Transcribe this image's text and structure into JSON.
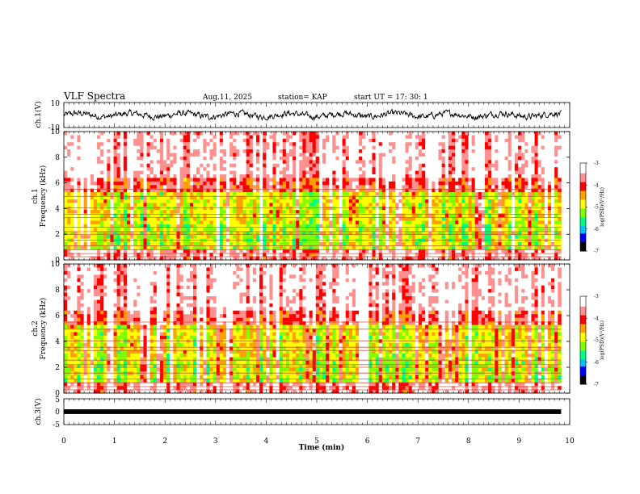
{
  "header": {
    "title": "VLF Spectra",
    "date": "Aug.11, 2025",
    "station": "station= KAP",
    "start": "start  UT  =   17: 30: 1"
  },
  "chart_data": {
    "type": "heatmap",
    "time_axis": {
      "label": "Time  (min)",
      "range": [
        0,
        10
      ],
      "ticks": [
        "0",
        "1",
        "2",
        "3",
        "4",
        "5",
        "6",
        "7",
        "8",
        "9",
        "10"
      ],
      "data_end": 9.83
    },
    "panels": [
      {
        "name": "ch1-waveform",
        "type": "line",
        "ylabel": "ch.1(V)",
        "ylim": [
          -10,
          10
        ],
        "ytick_labels": [
          "10",
          "-10"
        ],
        "signal_band": [
          -2.5,
          2.5
        ]
      },
      {
        "name": "ch1-spectrogram",
        "type": "heatmap",
        "ylabel": "ch.1\nFrequency  (kHz)",
        "ylim": [
          0,
          10
        ],
        "ytick_labels": [
          "0",
          "2",
          "4",
          "6",
          "8",
          "10"
        ],
        "colorbar": {
          "label": "log(PSD)(V²/Hz)",
          "range": [
            -7,
            -3
          ],
          "tick_labels": [
            "-3",
            "-4",
            "-5",
            "-6",
            "-7"
          ]
        },
        "harmonic_lines_khz": [
          0.25,
          0.5,
          0.8,
          1.1,
          1.55,
          2.0,
          2.2,
          2.55,
          3.3,
          3.55,
          4.05,
          4.95,
          5.5
        ]
      },
      {
        "name": "ch2-spectrogram",
        "type": "heatmap",
        "ylabel": "ch.2\nFrequency  (kHz)",
        "ylim": [
          0,
          10
        ],
        "ytick_labels": [
          "0",
          "2",
          "4",
          "6",
          "8",
          "10"
        ],
        "colorbar": {
          "label": "log(PSD)(V²/Hz)",
          "range": [
            -7,
            -3
          ],
          "tick_labels": [
            "-3",
            "-4",
            "-5",
            "-6",
            "-7"
          ]
        },
        "harmonic_lines_khz": [
          0.25,
          0.5,
          0.8,
          1.1,
          1.55,
          2.0,
          2.2,
          2.55,
          3.3,
          3.55,
          4.05,
          4.95,
          5.5
        ]
      },
      {
        "name": "ch3-waveform",
        "type": "line",
        "ylabel": "ch.3(V)",
        "ylim": [
          -5,
          5
        ],
        "ytick_labels": [
          "5",
          "0",
          "-5"
        ],
        "signal_band": [
          -0.9,
          0.9
        ]
      }
    ]
  },
  "colors": {
    "scale": [
      "#000000",
      "#0000ff",
      "#00c0ff",
      "#00ff80",
      "#80ff00",
      "#ffff00",
      "#ffa000",
      "#ff0000",
      "#ff9090",
      "#ffffff"
    ]
  }
}
